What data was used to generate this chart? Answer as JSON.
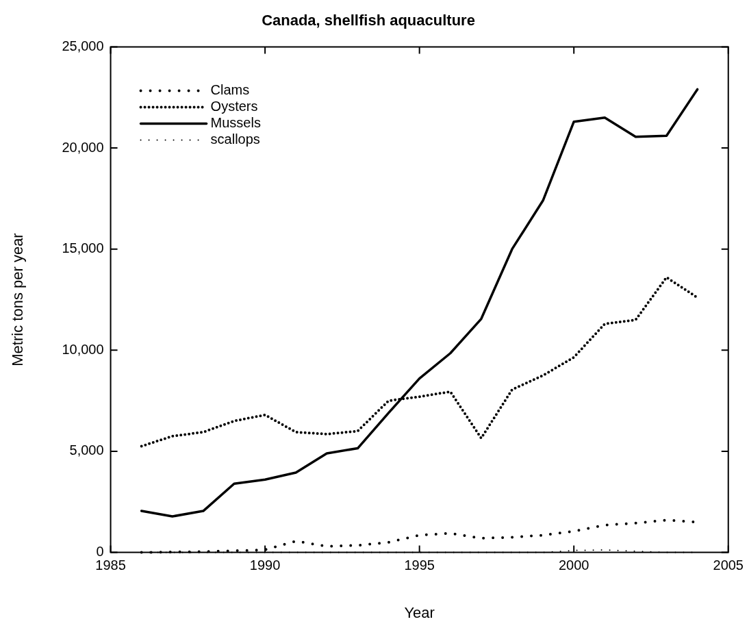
{
  "chart_data": {
    "type": "line",
    "title": "Canada, shellfish aquaculture",
    "xlabel": "Year",
    "ylabel": "Metric tons per year",
    "x": [
      1986,
      1987,
      1988,
      1989,
      1990,
      1991,
      1992,
      1993,
      1994,
      1995,
      1996,
      1997,
      1998,
      1999,
      2000,
      2001,
      2002,
      2003,
      2004
    ],
    "series": [
      {
        "name": "Clams",
        "color": "#000000",
        "line_style": "dotted",
        "values": [
          0,
          20,
          40,
          80,
          130,
          560,
          300,
          350,
          500,
          850,
          950,
          700,
          750,
          850,
          1050,
          1350,
          1450,
          1600,
          1500
        ]
      },
      {
        "name": "Oysters",
        "color": "#000000",
        "line_style": "dotted",
        "values": [
          5250,
          5750,
          5950,
          6500,
          6800,
          5950,
          5850,
          6000,
          7500,
          7700,
          7950,
          5650,
          8050,
          8750,
          9650,
          11300,
          11500,
          13600,
          12600
        ]
      },
      {
        "name": "Mussels",
        "color": "#000000",
        "line_style": "solid",
        "values": [
          2050,
          1780,
          2050,
          3400,
          3600,
          3950,
          4900,
          5150,
          6900,
          8600,
          9850,
          11550,
          15000,
          17400,
          21300,
          21500,
          20550,
          20600,
          22900
        ]
      },
      {
        "name": "scallops",
        "color": "#000000",
        "line_style": "dotted",
        "values": [
          0,
          0,
          0,
          0,
          0,
          0,
          0,
          0,
          0,
          0,
          0,
          0,
          0,
          0,
          100,
          120,
          60,
          0,
          0
        ]
      }
    ],
    "xlim": [
      1985,
      2005
    ],
    "xticks": [
      1985,
      1990,
      1995,
      2000,
      2005
    ],
    "ylim": [
      0,
      25000
    ],
    "yticks": [
      {
        "value": 0,
        "label": "0"
      },
      {
        "value": 5000,
        "label": "5,000"
      },
      {
        "value": 10000,
        "label": "10,000"
      },
      {
        "value": 15000,
        "label": "15,000"
      },
      {
        "value": 20000,
        "label": "20,000"
      },
      {
        "value": 25000,
        "label": "25,000"
      }
    ],
    "grid": false,
    "legend": "top left",
    "marker": "none"
  }
}
